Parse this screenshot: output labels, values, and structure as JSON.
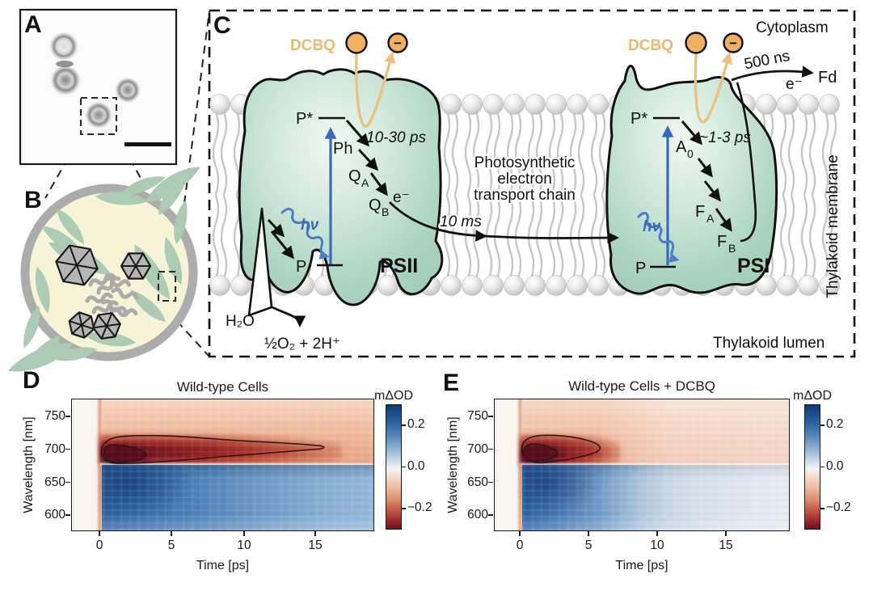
{
  "panels": {
    "a": "A",
    "b": "B",
    "c": "C",
    "d": "D",
    "e": "E"
  },
  "panel_c": {
    "cytoplasm": "Cytoplasm",
    "membrane_label": "Thylakoid membrane",
    "lumen_label": "Thylakoid lumen",
    "chain_line1": "Photosynthetic",
    "chain_line2": "electron",
    "chain_line3": "transport chain",
    "psii": {
      "dcbq": "DCBQ",
      "minus": "−",
      "p_star": "P*",
      "time_fast": "10-30 ps",
      "ph": "Ph",
      "q": "Q",
      "sub_a": "A",
      "sub_b": "B",
      "electron": "e⁻",
      "time_slow": "10 ms",
      "hv": "hν",
      "p": "P",
      "name": "PSII",
      "h2o": "H₂O",
      "o2_products": "½O₂ + 2H⁺"
    },
    "psi": {
      "dcbq": "DCBQ",
      "minus": "−",
      "p_star": "P*",
      "time_fast": "~1-3 ps",
      "a": "A",
      "sub_0": "0",
      "f": "F",
      "sub_a": "A",
      "sub_b": "B",
      "time_transfer": "500 ns",
      "electron": "e⁻",
      "fd": "Fd",
      "hv": "hν",
      "p": "P",
      "name": "PSI"
    }
  },
  "charts": {
    "d": {
      "title": "Wild-type Cells",
      "xlabel": "Time [ps]",
      "ylabel": "Wavelength [nm]",
      "colorbar_label": "mΔOD",
      "xticks": [
        "0",
        "5",
        "10",
        "15"
      ],
      "yticks": [
        "750",
        "700",
        "650",
        "600"
      ],
      "cticks": [
        "0.2",
        "0.0",
        "−0.2"
      ]
    },
    "e": {
      "title": "Wild-type Cells + DCBQ",
      "xlabel": "Time [ps]",
      "ylabel": "Wavelength [nm]",
      "colorbar_label": "mΔOD",
      "xticks": [
        "0",
        "5",
        "10",
        "15"
      ],
      "yticks": [
        "750",
        "700",
        "650",
        "600"
      ],
      "cticks": [
        "0.2",
        "0.0",
        "−0.2"
      ]
    }
  },
  "chart_data": [
    {
      "type": "heatmap",
      "panel": "D",
      "title": "Wild-type Cells",
      "xlabel": "Time [ps]",
      "ylabel": "Wavelength [nm]",
      "colorbar_label": "mΔOD",
      "xlim": [
        -2,
        19.5
      ],
      "ylim": [
        575,
        777
      ],
      "xticks": [
        0,
        5,
        10,
        15
      ],
      "yticks": [
        600,
        650,
        700,
        750
      ],
      "colorbar_ticks": [
        0.2,
        0.0,
        -0.2
      ],
      "colorbar_range": [
        -0.3,
        0.3
      ],
      "features": {
        "negative_band": {
          "center_nm": 700,
          "range_nm": [
            683,
            777
          ],
          "sign": "negative (red, ground-state bleach)"
        },
        "positive_band": {
          "range_nm": [
            575,
            680
          ],
          "sign": "positive (blue, excited-state absorption)"
        },
        "outer_contour_extent_ps": 15.5,
        "inner_contour_extent_ps": 3.6
      },
      "bleach_700nm_series": {
        "t_ps": [
          0.5,
          1,
          2,
          5,
          10,
          15,
          19
        ],
        "mdod": [
          -0.35,
          -0.33,
          -0.3,
          -0.22,
          -0.16,
          -0.12,
          -0.1
        ]
      },
      "esa_650nm_series": {
        "t_ps": [
          0.5,
          1,
          2,
          5,
          10,
          15,
          19
        ],
        "mdod": [
          0.3,
          0.29,
          0.27,
          0.24,
          0.21,
          0.19,
          0.18
        ]
      }
    },
    {
      "type": "heatmap",
      "panel": "E",
      "title": "Wild-type Cells + DCBQ",
      "xlabel": "Time [ps]",
      "ylabel": "Wavelength [nm]",
      "colorbar_label": "mΔOD",
      "xlim": [
        -2,
        19.5
      ],
      "ylim": [
        575,
        777
      ],
      "xticks": [
        0,
        5,
        10,
        15
      ],
      "yticks": [
        600,
        650,
        700,
        750
      ],
      "colorbar_ticks": [
        0.2,
        0.0,
        -0.2
      ],
      "colorbar_range": [
        -0.3,
        0.3
      ],
      "features": {
        "negative_band": {
          "center_nm": 700,
          "range_nm": [
            683,
            777
          ],
          "sign": "negative (red, ground-state bleach)"
        },
        "positive_band": {
          "range_nm": [
            575,
            680
          ],
          "sign": "positive (blue, excited-state absorption)"
        },
        "outer_contour_extent_ps": 5.8,
        "inner_contour_extent_ps": 2.5
      },
      "bleach_700nm_series": {
        "t_ps": [
          0.5,
          1,
          2,
          5,
          10,
          15,
          19
        ],
        "mdod": [
          -0.35,
          -0.32,
          -0.26,
          -0.12,
          -0.05,
          -0.03,
          -0.02
        ]
      },
      "esa_650nm_series": {
        "t_ps": [
          0.5,
          1,
          2,
          5,
          10,
          15,
          19
        ],
        "mdod": [
          0.3,
          0.27,
          0.2,
          0.1,
          0.06,
          0.05,
          0.04
        ]
      }
    }
  ]
}
